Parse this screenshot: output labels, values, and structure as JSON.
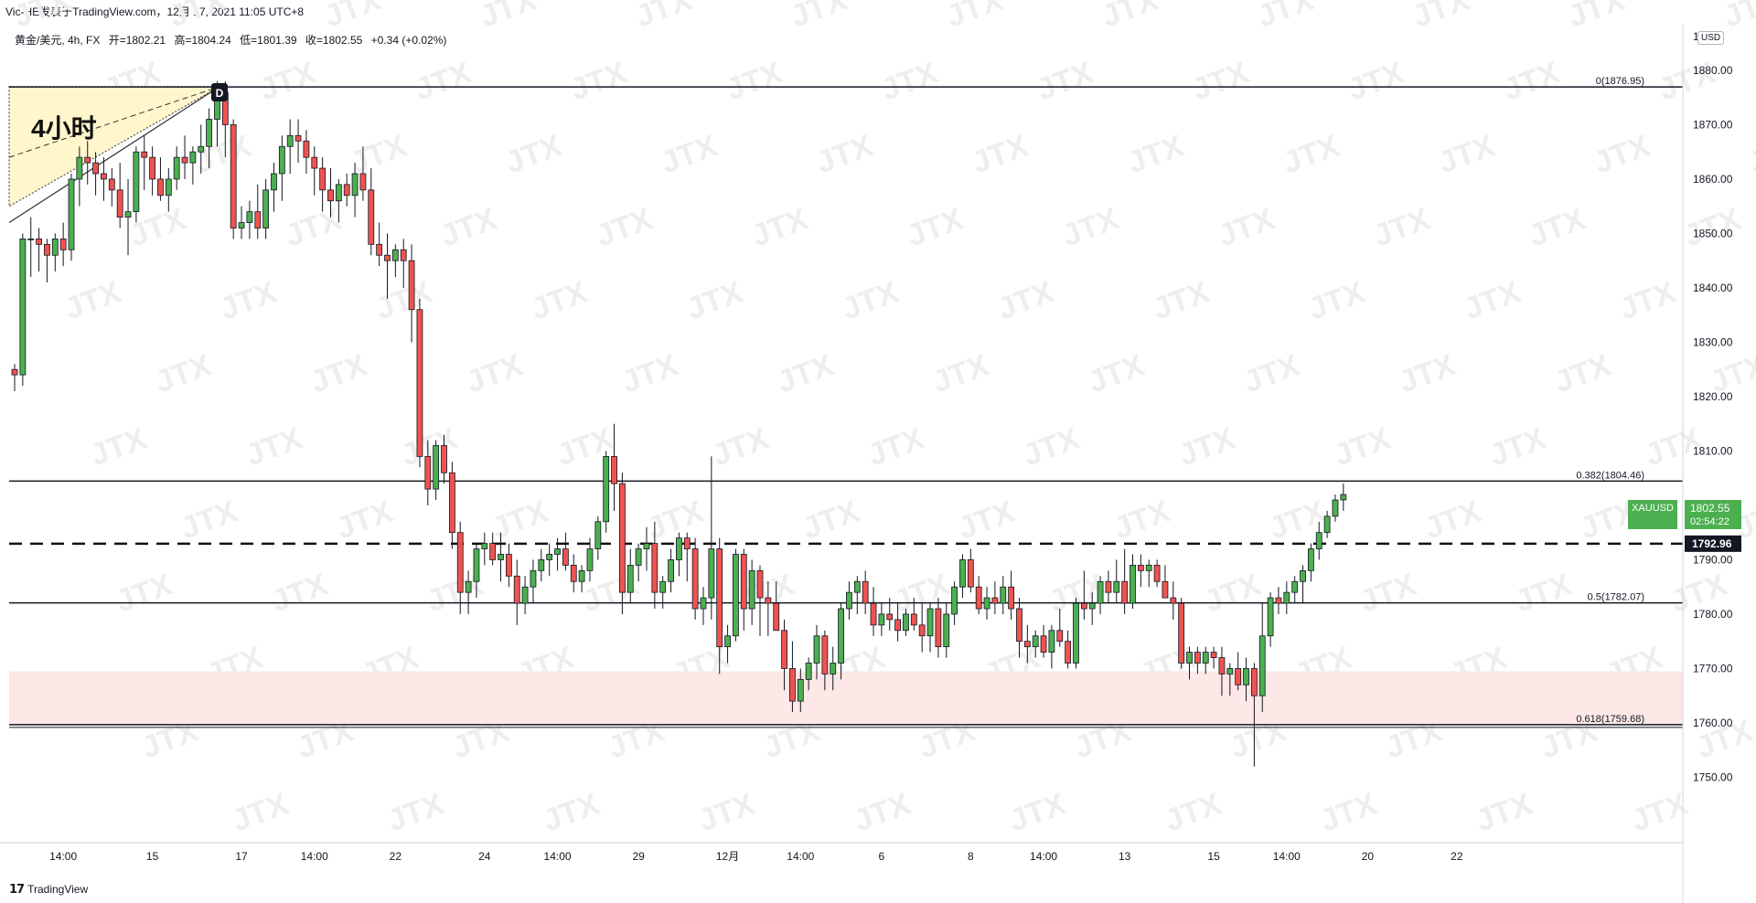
{
  "header": {
    "top_text": "Vic-HE发表于TradingView.com，12月 17, 2021 11:05 UTC+8",
    "symbol": "黄金/美元, 4h, FX",
    "open": "开=1802.21",
    "high": "高=1804.24",
    "low": "低=1801.39",
    "close": "收=1802.55",
    "change": "+0.34 (+0.02%)"
  },
  "currency_badge": "USD",
  "price_axis_top": "18",
  "footer": {
    "logo_icon": "tradingview-icon",
    "brand": "TradingView"
  },
  "colors": {
    "up": "#4caf50",
    "down": "#ef5350",
    "zone": "#fde7e7",
    "triangle": "#fff6cc",
    "accent": "#26a69a"
  },
  "chart_data": {
    "type": "candlestick",
    "symbol": "XAUUSD",
    "timeframe": "4h",
    "ylim": [
      1742,
      1886
    ],
    "y_ticks": [
      1750,
      1760,
      1770,
      1780,
      1790,
      1800,
      1810,
      1820,
      1830,
      1840,
      1850,
      1860,
      1870,
      1880
    ],
    "y_tick_labels": [
      "1750.00",
      "1760.00",
      "1770.00",
      "1780.00",
      "1790.00",
      "1800.00",
      "1810.00",
      "1820.00",
      "1830.00",
      "1840.00",
      "1850.00",
      "1860.00",
      "1870.00",
      "1880.00"
    ],
    "x_labels": [
      "14:00",
      "15",
      "17",
      "14:00",
      "22",
      "24",
      "14:00",
      "29",
      "12月",
      "14:00",
      "6",
      "8",
      "14:00",
      "13",
      "15",
      "14:00",
      "20",
      "22"
    ],
    "x_label_index": [
      6,
      17,
      28,
      37,
      47,
      58,
      67,
      77,
      88,
      97,
      107,
      118,
      127,
      137,
      148,
      157,
      167,
      178
    ],
    "index_span": [
      0,
      184
    ],
    "candles": [
      [
        1825,
        1826,
        1821,
        1824
      ],
      [
        1824,
        1850,
        1822,
        1849
      ],
      [
        1849,
        1853,
        1842,
        1849
      ],
      [
        1849,
        1851,
        1843,
        1848
      ],
      [
        1848,
        1849,
        1841,
        1846
      ],
      [
        1846,
        1850,
        1843,
        1849
      ],
      [
        1849,
        1852,
        1844,
        1847
      ],
      [
        1847,
        1861,
        1845,
        1860
      ],
      [
        1860,
        1866,
        1855,
        1864
      ],
      [
        1864,
        1867,
        1859,
        1863
      ],
      [
        1863,
        1865,
        1857,
        1861
      ],
      [
        1861,
        1864,
        1856,
        1860
      ],
      [
        1860,
        1862,
        1855,
        1858
      ],
      [
        1858,
        1863,
        1851,
        1853
      ],
      [
        1853,
        1860,
        1846,
        1854
      ],
      [
        1854,
        1866,
        1852,
        1865
      ],
      [
        1865,
        1868,
        1858,
        1864
      ],
      [
        1864,
        1866,
        1857,
        1860
      ],
      [
        1860,
        1864,
        1856,
        1857
      ],
      [
        1857,
        1862,
        1854,
        1860
      ],
      [
        1860,
        1866,
        1858,
        1864
      ],
      [
        1864,
        1868,
        1860,
        1863
      ],
      [
        1863,
        1866,
        1859,
        1865
      ],
      [
        1865,
        1870,
        1861,
        1866
      ],
      [
        1866,
        1873,
        1862,
        1871
      ],
      [
        1871,
        1878,
        1866,
        1876
      ],
      [
        1876,
        1878,
        1864,
        1870
      ],
      [
        1870,
        1871,
        1849,
        1851
      ],
      [
        1851,
        1855,
        1849,
        1852
      ],
      [
        1852,
        1856,
        1849,
        1854
      ],
      [
        1854,
        1859,
        1849,
        1851
      ],
      [
        1851,
        1860,
        1849,
        1858
      ],
      [
        1858,
        1863,
        1854,
        1861
      ],
      [
        1861,
        1868,
        1856,
        1866
      ],
      [
        1866,
        1871,
        1861,
        1868
      ],
      [
        1868,
        1871,
        1863,
        1867
      ],
      [
        1867,
        1869,
        1861,
        1864
      ],
      [
        1864,
        1866,
        1857,
        1862
      ],
      [
        1862,
        1864,
        1854,
        1858
      ],
      [
        1858,
        1862,
        1853,
        1856
      ],
      [
        1856,
        1860,
        1852,
        1859
      ],
      [
        1859,
        1861,
        1855,
        1857
      ],
      [
        1857,
        1863,
        1853,
        1861
      ],
      [
        1861,
        1866,
        1856,
        1858
      ],
      [
        1858,
        1862,
        1846,
        1848
      ],
      [
        1848,
        1852,
        1844,
        1846
      ],
      [
        1846,
        1850,
        1838,
        1845
      ],
      [
        1845,
        1848,
        1842,
        1847
      ],
      [
        1847,
        1849,
        1840,
        1845
      ],
      [
        1845,
        1848,
        1830,
        1836
      ],
      [
        1836,
        1838,
        1807,
        1809
      ],
      [
        1809,
        1812,
        1800,
        1803
      ],
      [
        1803,
        1812,
        1801,
        1811
      ],
      [
        1811,
        1813,
        1804,
        1806
      ],
      [
        1806,
        1808,
        1792,
        1795
      ],
      [
        1795,
        1797,
        1780,
        1784
      ],
      [
        1784,
        1788,
        1780,
        1786
      ],
      [
        1786,
        1793,
        1783,
        1792
      ],
      [
        1792,
        1795,
        1789,
        1793
      ],
      [
        1793,
        1795,
        1789,
        1790
      ],
      [
        1790,
        1795,
        1786,
        1791
      ],
      [
        1791,
        1793,
        1785,
        1787
      ],
      [
        1787,
        1790,
        1778,
        1782
      ],
      [
        1782,
        1787,
        1780,
        1785
      ],
      [
        1785,
        1790,
        1782,
        1788
      ],
      [
        1788,
        1792,
        1786,
        1790
      ],
      [
        1790,
        1793,
        1787,
        1791
      ],
      [
        1791,
        1794,
        1788,
        1792
      ],
      [
        1792,
        1795,
        1788,
        1789
      ],
      [
        1789,
        1791,
        1784,
        1786
      ],
      [
        1786,
        1789,
        1784,
        1788
      ],
      [
        1788,
        1794,
        1786,
        1792
      ],
      [
        1792,
        1798,
        1790,
        1797
      ],
      [
        1797,
        1810,
        1795,
        1809
      ],
      [
        1809,
        1815,
        1799,
        1804
      ],
      [
        1804,
        1806,
        1780,
        1784
      ],
      [
        1784,
        1792,
        1782,
        1789
      ],
      [
        1789,
        1793,
        1786,
        1792
      ],
      [
        1792,
        1796,
        1788,
        1793
      ],
      [
        1793,
        1797,
        1781,
        1784
      ],
      [
        1784,
        1787,
        1781,
        1786
      ],
      [
        1786,
        1792,
        1784,
        1790
      ],
      [
        1790,
        1795,
        1787,
        1794
      ],
      [
        1794,
        1795,
        1786,
        1792
      ],
      [
        1792,
        1794,
        1779,
        1781
      ],
      [
        1781,
        1785,
        1778,
        1783
      ],
      [
        1783,
        1809,
        1779,
        1792
      ],
      [
        1792,
        1794,
        1769,
        1774
      ],
      [
        1774,
        1778,
        1771,
        1776
      ],
      [
        1776,
        1792,
        1775,
        1791
      ],
      [
        1791,
        1792,
        1777,
        1781
      ],
      [
        1781,
        1790,
        1778,
        1788
      ],
      [
        1788,
        1789,
        1776,
        1783
      ],
      [
        1783,
        1786,
        1776,
        1782
      ],
      [
        1782,
        1786,
        1777,
        1777
      ],
      [
        1777,
        1779,
        1766,
        1770
      ],
      [
        1770,
        1775,
        1762,
        1764
      ],
      [
        1764,
        1770,
        1762,
        1768
      ],
      [
        1768,
        1772,
        1766,
        1771
      ],
      [
        1771,
        1778,
        1768,
        1776
      ],
      [
        1776,
        1777,
        1766,
        1769
      ],
      [
        1769,
        1774,
        1766,
        1771
      ],
      [
        1771,
        1782,
        1768,
        1781
      ],
      [
        1781,
        1786,
        1779,
        1784
      ],
      [
        1784,
        1787,
        1780,
        1786
      ],
      [
        1786,
        1788,
        1780,
        1782
      ],
      [
        1782,
        1785,
        1776,
        1778
      ],
      [
        1778,
        1782,
        1776,
        1780
      ],
      [
        1780,
        1783,
        1777,
        1779
      ],
      [
        1779,
        1782,
        1775,
        1777
      ],
      [
        1777,
        1781,
        1776,
        1780
      ],
      [
        1780,
        1783,
        1777,
        1778
      ],
      [
        1778,
        1782,
        1773,
        1776
      ],
      [
        1776,
        1782,
        1773,
        1781
      ],
      [
        1781,
        1783,
        1772,
        1774
      ],
      [
        1774,
        1782,
        1772,
        1780
      ],
      [
        1780,
        1786,
        1778,
        1785
      ],
      [
        1785,
        1791,
        1783,
        1790
      ],
      [
        1790,
        1792,
        1784,
        1785
      ],
      [
        1785,
        1787,
        1780,
        1781
      ],
      [
        1781,
        1785,
        1779,
        1783
      ],
      [
        1783,
        1786,
        1780,
        1782
      ],
      [
        1782,
        1787,
        1780,
        1785
      ],
      [
        1785,
        1788,
        1779,
        1781
      ],
      [
        1781,
        1783,
        1772,
        1775
      ],
      [
        1775,
        1778,
        1771,
        1774
      ],
      [
        1774,
        1777,
        1772,
        1776
      ],
      [
        1776,
        1778,
        1772,
        1773
      ],
      [
        1773,
        1778,
        1770,
        1777
      ],
      [
        1777,
        1781,
        1774,
        1775
      ],
      [
        1775,
        1777,
        1770,
        1771
      ],
      [
        1771,
        1783,
        1770,
        1782
      ],
      [
        1782,
        1788,
        1779,
        1781
      ],
      [
        1781,
        1784,
        1778,
        1782
      ],
      [
        1782,
        1787,
        1780,
        1786
      ],
      [
        1786,
        1788,
        1782,
        1784
      ],
      [
        1784,
        1790,
        1782,
        1786
      ],
      [
        1786,
        1792,
        1780,
        1782
      ],
      [
        1782,
        1791,
        1781,
        1789
      ],
      [
        1789,
        1791,
        1785,
        1788
      ],
      [
        1788,
        1790,
        1785,
        1789
      ],
      [
        1789,
        1790,
        1785,
        1786
      ],
      [
        1786,
        1789,
        1784,
        1783
      ],
      [
        1783,
        1786,
        1779,
        1782
      ],
      [
        1782,
        1783,
        1770,
        1771
      ],
      [
        1771,
        1774,
        1768,
        1773
      ],
      [
        1773,
        1774,
        1769,
        1771
      ],
      [
        1771,
        1774,
        1769,
        1773
      ],
      [
        1773,
        1774,
        1770,
        1772
      ],
      [
        1772,
        1774,
        1765,
        1769
      ],
      [
        1769,
        1771,
        1765,
        1770
      ],
      [
        1770,
        1773,
        1766,
        1767
      ],
      [
        1767,
        1772,
        1764,
        1770
      ],
      [
        1770,
        1771,
        1752,
        1765
      ],
      [
        1765,
        1782,
        1762,
        1776
      ],
      [
        1776,
        1784,
        1774,
        1783
      ],
      [
        1783,
        1785,
        1780,
        1782
      ],
      [
        1782,
        1786,
        1780,
        1784
      ],
      [
        1784,
        1787,
        1782,
        1786
      ],
      [
        1786,
        1789,
        1782,
        1788
      ],
      [
        1788,
        1793,
        1786,
        1792
      ],
      [
        1792,
        1797,
        1790,
        1795
      ],
      [
        1795,
        1799,
        1794,
        1798
      ],
      [
        1798,
        1802,
        1797,
        1801
      ],
      [
        1801,
        1804,
        1799,
        1802
      ]
    ],
    "fib_levels": [
      {
        "label": "0(1876.95)",
        "price": 1876.95
      },
      {
        "label": "0.382(1804.46)",
        "price": 1804.46
      },
      {
        "label": "0.5(1782.07)",
        "price": 1782.07
      },
      {
        "label": "0.618(1759.68)",
        "price": 1759.68
      }
    ],
    "dashed_level": {
      "price": 1792.96,
      "label": "1792.96"
    },
    "demand_zone": [
      1759.68,
      1769.5
    ],
    "current_price": {
      "symbol": "XAUUSD",
      "price": "1802.55",
      "countdown": "02:54:22",
      "value": 1802.55
    },
    "annotations": {
      "timeframe_note": "4小时",
      "marker": "D"
    },
    "watermark": "JTX"
  }
}
